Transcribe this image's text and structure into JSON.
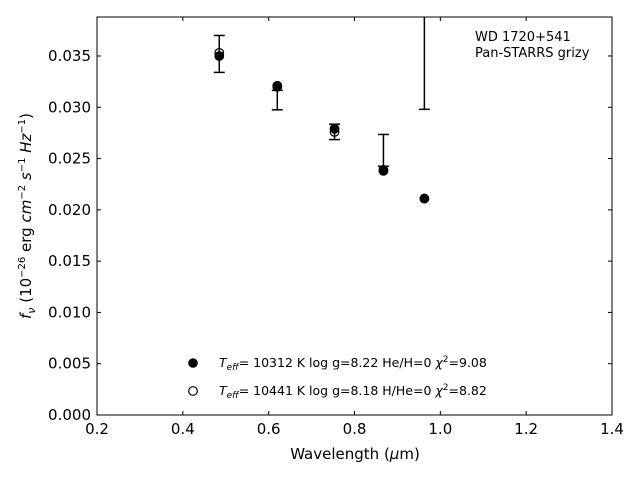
{
  "chart_data": {
    "type": "scatter",
    "xlabel": "Wavelength (μm)",
    "ylabel": "f_ν (10^-26 erg cm^-2 s^-1 Hz^-1)",
    "xlim": [
      0.2,
      1.4
    ],
    "ylim": [
      0.0,
      0.0388
    ],
    "x_ticks": [
      "0.2",
      "0.4",
      "0.6",
      "0.8",
      "1.0",
      "1.2",
      "1.4"
    ],
    "y_ticks": [
      "0.000",
      "0.005",
      "0.010",
      "0.015",
      "0.020",
      "0.025",
      "0.030",
      "0.035"
    ],
    "annotation": [
      "WD 1720+541",
      "Pan-STARRS grizy"
    ],
    "grid": false,
    "legend_position": "lower-center",
    "observed": {
      "marker": "errorbar",
      "points": [
        {
          "x": 0.4849,
          "y": 0.0352,
          "err": 0.0018
        },
        {
          "x": 0.6201,
          "y": 0.0307,
          "err": 0.00095
        },
        {
          "x": 0.7535,
          "y": 0.0276,
          "err": 0.00075
        },
        {
          "x": 0.8674,
          "y": 0.0258,
          "err": 0.00155
        },
        {
          "x": 0.9628,
          "y": 0.0386,
          "err": 0.0088
        }
      ]
    },
    "series": [
      {
        "name": "T_eff= 10312 K  log g=8.22  He/H=0  χ²=9.08",
        "marker": "filled-circle",
        "x": [
          0.4849,
          0.6201,
          0.7535,
          0.8674,
          0.9628
        ],
        "y": [
          0.035,
          0.032,
          0.0279,
          0.0239,
          0.0211
        ]
      },
      {
        "name": "T_eff= 10441 K  log g=8.18  H/He=0  χ²=8.82",
        "marker": "open-circle",
        "x": [
          0.4849,
          0.6201,
          0.7535,
          0.8674,
          0.9628
        ],
        "y": [
          0.0353,
          0.0321,
          0.0276,
          0.0238,
          0.0211
        ]
      }
    ]
  }
}
